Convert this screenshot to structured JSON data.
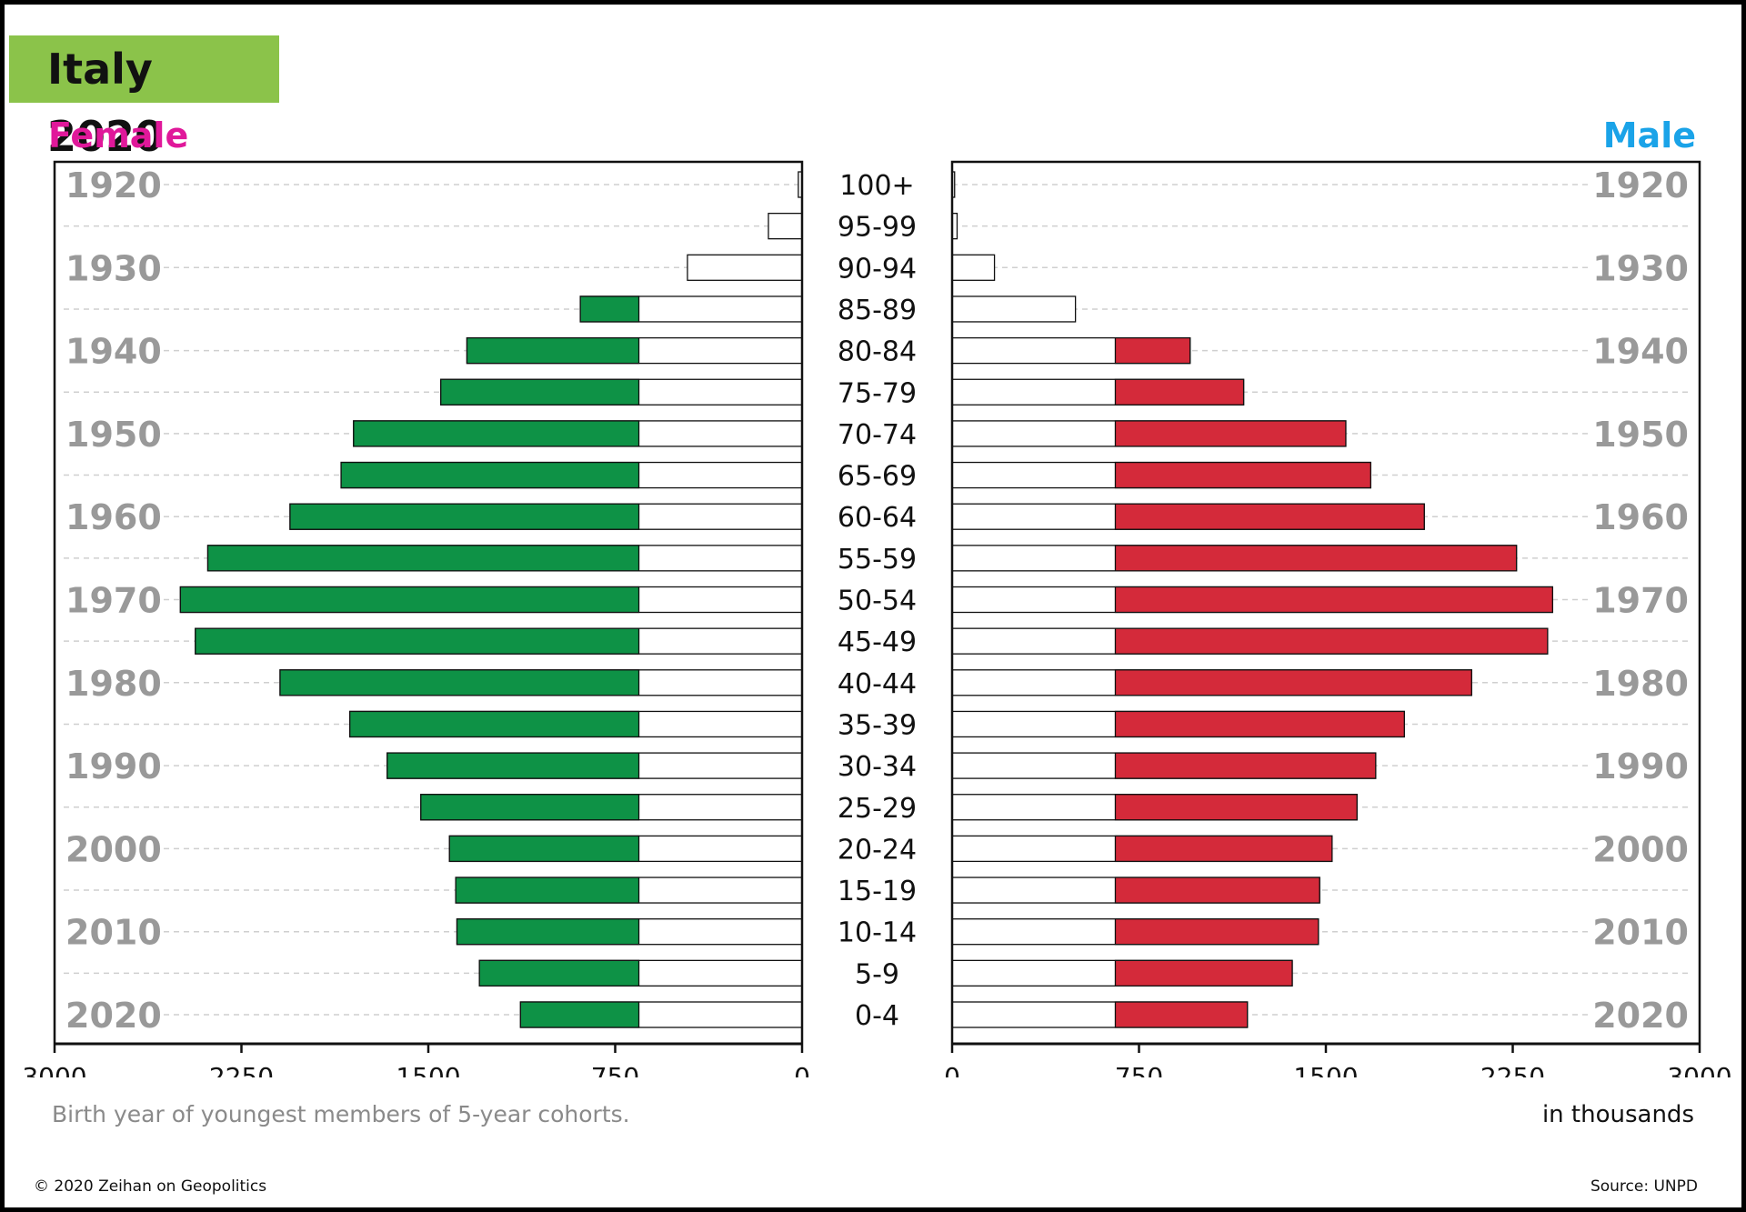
{
  "title": "Italy 2020",
  "female_label": "Female",
  "male_label": "Male",
  "note": "Birth year of youngest members of 5-year cohorts.",
  "units": "in thousands",
  "copyright": "© 2020 Zeihan on Geopolitics",
  "source": "Source: UNPD",
  "colors": {
    "title_bg": "#8bc34a",
    "female_label": "#e0189a",
    "male_label": "#1aa3e8",
    "female_bar": "#0e9246",
    "male_bar": "#d42a3a",
    "year_label": "#999999"
  },
  "chart_data": {
    "type": "bar",
    "orientation": "horizontal",
    "categories": [
      "100+",
      "95-99",
      "90-94",
      "85-89",
      "80-84",
      "75-79",
      "70-74",
      "65-69",
      "60-64",
      "55-59",
      "50-54",
      "45-49",
      "40-44",
      "35-39",
      "30-34",
      "25-29",
      "20-24",
      "15-19",
      "10-14",
      "5-9",
      "0-4"
    ],
    "birth_year_labels": [
      "1920",
      "1930",
      "1940",
      "1950",
      "1960",
      "1970",
      "1980",
      "1990",
      "2000",
      "2010",
      "2020"
    ],
    "series": [
      {
        "name": "Female",
        "values": [
          15,
          135,
          460,
          890,
          1345,
          1450,
          1800,
          1850,
          2055,
          2385,
          2495,
          2435,
          2095,
          1815,
          1665,
          1530,
          1415,
          1390,
          1385,
          1295,
          1130
        ]
      },
      {
        "name": "Male",
        "values": [
          10,
          20,
          170,
          495,
          955,
          1170,
          1580,
          1680,
          1895,
          2265,
          2410,
          2390,
          2085,
          1815,
          1700,
          1625,
          1525,
          1475,
          1470,
          1365,
          1185
        ]
      }
    ],
    "highlight_threshold": 655,
    "xticks_female": [
      "3000",
      "2250",
      "1500",
      "750",
      "0"
    ],
    "xticks_male": [
      "0",
      "750",
      "1500",
      "2250",
      "3000"
    ],
    "xlim": [
      0,
      3000
    ]
  }
}
